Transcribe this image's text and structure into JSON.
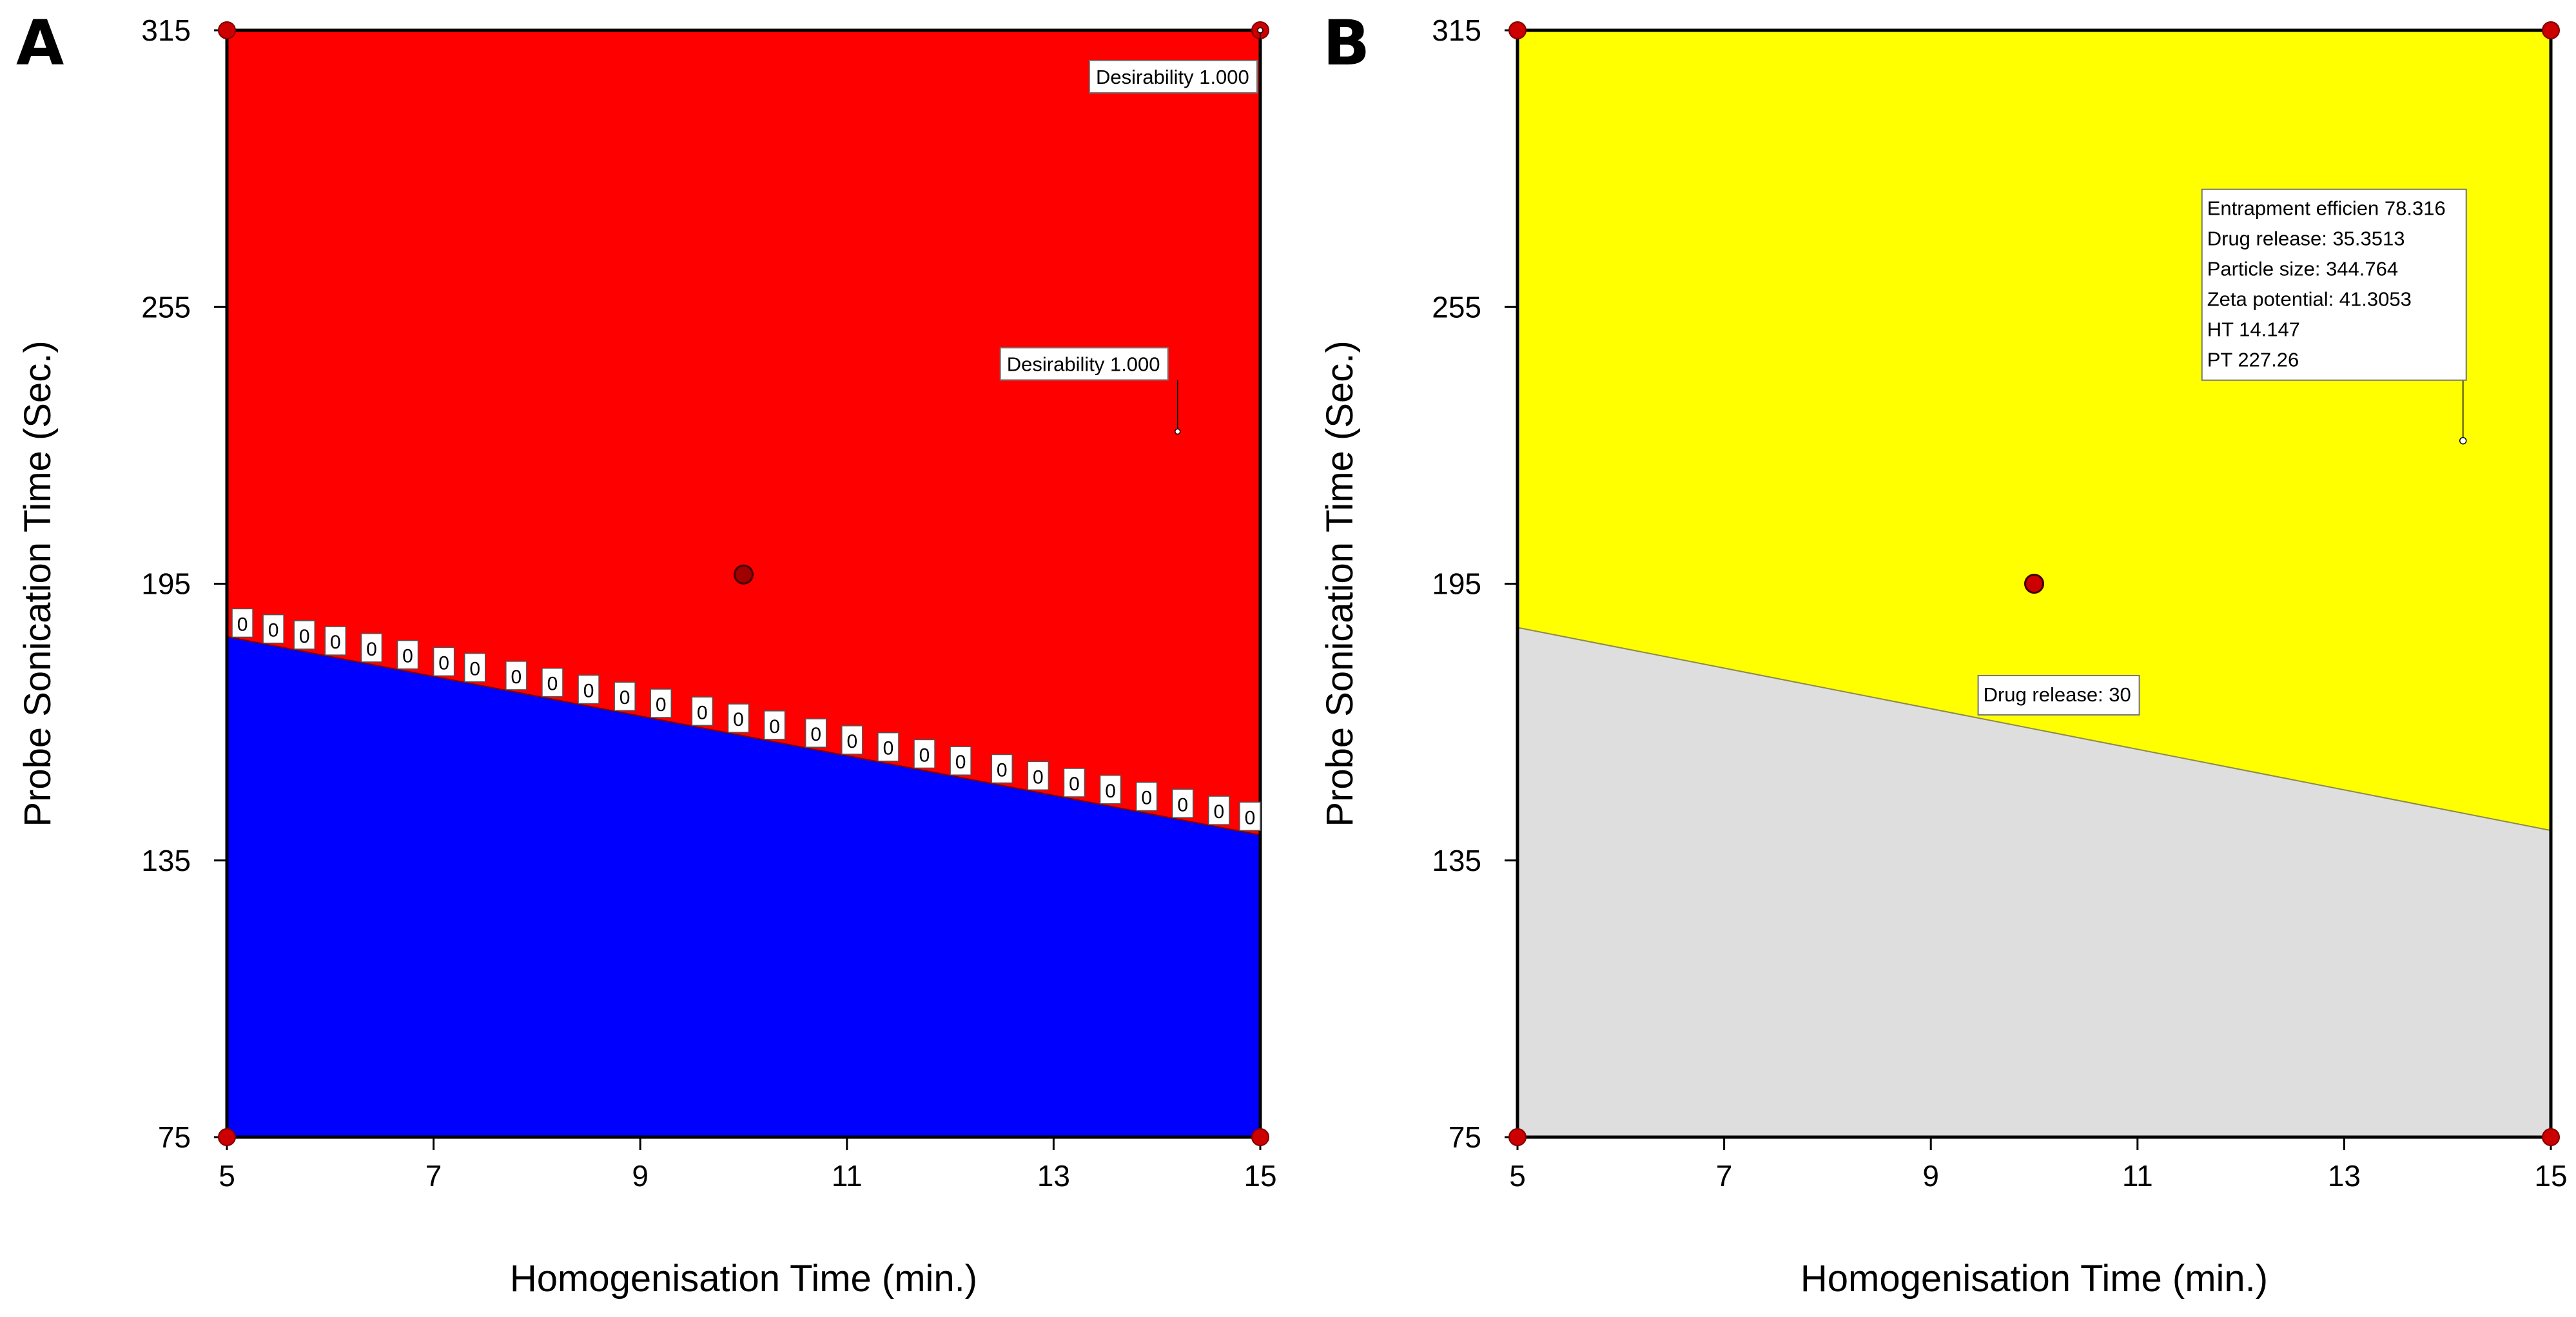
{
  "chart_data": [
    {
      "type": "heatmap",
      "panel": "A",
      "xlabel": "Homogenisation Time (min.)",
      "ylabel": "Probe Sonication Time (Sec.)",
      "xlim": [
        5,
        15
      ],
      "ylim": [
        75,
        315
      ],
      "xticks": [
        "5",
        "7",
        "9",
        "11",
        "13",
        "15"
      ],
      "yticks": [
        "75",
        "135",
        "195",
        "255",
        "315"
      ],
      "boundary": {
        "x": [
          5,
          15
        ],
        "y": [
          183.5,
          140.5
        ]
      },
      "regions": [
        {
          "name": "upper",
          "color": "#ff0000"
        },
        {
          "name": "lower",
          "color": "#0000ff"
        }
      ],
      "contour_label": "0",
      "contour_label_x": [
        5.15,
        5.45,
        5.75,
        6.05,
        6.4,
        6.75,
        7.1,
        7.4,
        7.8,
        8.15,
        8.5,
        8.85,
        9.2,
        9.6,
        9.95,
        10.3,
        10.7,
        11.05,
        11.4,
        11.75,
        12.1,
        12.5,
        12.85,
        13.2,
        13.55,
        13.9,
        14.25,
        14.6,
        14.9
      ],
      "design_points": [
        {
          "x": 5,
          "y": 315
        },
        {
          "x": 15,
          "y": 315
        },
        {
          "x": 5,
          "y": 75
        },
        {
          "x": 15,
          "y": 75
        }
      ],
      "center_point": {
        "x": 10,
        "y": 197
      },
      "annotations": [
        {
          "text": "Desirability  1.000",
          "point": {
            "x": 15,
            "y": 315
          }
        },
        {
          "text": "Desirability  1.000",
          "point": {
            "x": 14.2,
            "y": 228
          }
        }
      ]
    },
    {
      "type": "heatmap",
      "panel": "B",
      "xlabel": "Homogenisation Time (min.)",
      "ylabel": "Probe Sonication Time (Sec.)",
      "xlim": [
        5,
        15
      ],
      "ylim": [
        75,
        315
      ],
      "xticks": [
        "5",
        "7",
        "9",
        "11",
        "13",
        "15"
      ],
      "yticks": [
        "75",
        "135",
        "195",
        "255",
        "315"
      ],
      "boundary": {
        "x": [
          5,
          15
        ],
        "y": [
          185.5,
          141.5
        ]
      },
      "regions": [
        {
          "name": "upper",
          "color": "#ffff00"
        },
        {
          "name": "lower",
          "color": "#dedede"
        }
      ],
      "design_points": [
        {
          "x": 5,
          "y": 315
        },
        {
          "x": 15,
          "y": 315
        },
        {
          "x": 5,
          "y": 75
        },
        {
          "x": 15,
          "y": 75
        }
      ],
      "center_point": {
        "x": 10,
        "y": 195
      },
      "annotations": [
        {
          "lines": [
            "Entrapment efficien  78.316",
            "Drug release:   35.3513",
            "Particle size:   344.764",
            "Zeta potential:   41.3053",
            "HT  14.147",
            "PT  227.26"
          ],
          "point": {
            "x": 14.15,
            "y": 226
          }
        },
        {
          "lines": [
            "Drug release: 30"
          ],
          "point": {
            "x": 10.3,
            "y": 166
          }
        }
      ]
    }
  ]
}
